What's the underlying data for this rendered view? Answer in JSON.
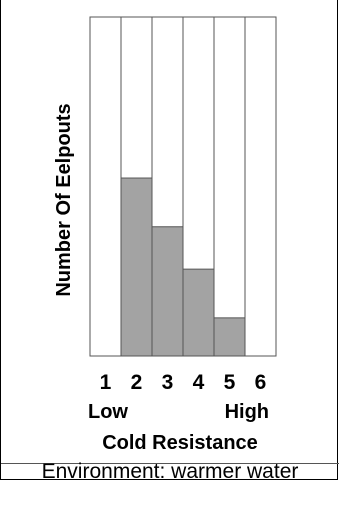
{
  "chart_data": {
    "type": "bar",
    "categories": [
      "1",
      "2",
      "3",
      "4",
      "5",
      "6"
    ],
    "values": [
      0,
      4.2,
      3.05,
      2.05,
      0.9,
      0
    ],
    "ylim": [
      0,
      8
    ],
    "ylabel": "Number Of Eelpouts",
    "xlabel": "Cold Resistance",
    "x_low_label": "Low",
    "x_high_label": "High",
    "grid": false,
    "bar_color": "#a3a3a3",
    "outline_color": "#555555"
  },
  "caption": "Environment: warmer water"
}
